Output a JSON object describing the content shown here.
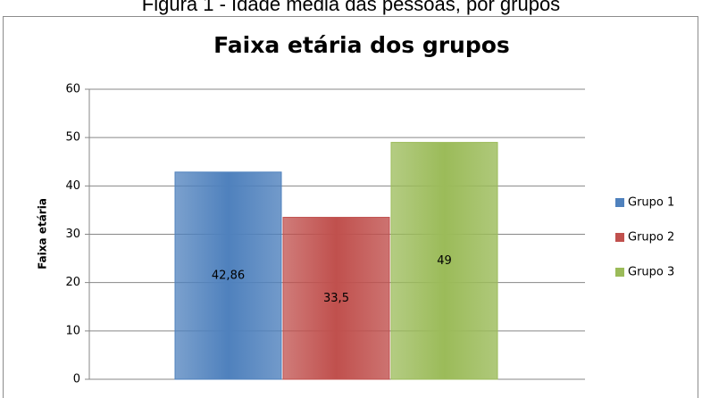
{
  "caption": "Figura 1 - Idade média das pessoas, por grupos",
  "chart_data": {
    "type": "bar",
    "title": "Faixa etária dos grupos",
    "y_label": "Faixa etária",
    "categories": [
      null
    ],
    "series": [
      {
        "name": "Grupo 1",
        "color": "#4f81bd",
        "values": [
          42.86
        ],
        "value_labels": [
          "42,86"
        ]
      },
      {
        "name": "Grupo 2",
        "color": "#c0504d",
        "values": [
          33.5
        ],
        "value_labels": [
          "33,5"
        ]
      },
      {
        "name": "Grupo 3",
        "color": "#9bbb59",
        "values": [
          49
        ],
        "value_labels": [
          "49"
        ]
      }
    ],
    "ylim": [
      0,
      60
    ],
    "yticks": [
      0,
      10,
      20,
      30,
      40,
      50,
      60
    ],
    "grid": true,
    "legend": "right"
  }
}
